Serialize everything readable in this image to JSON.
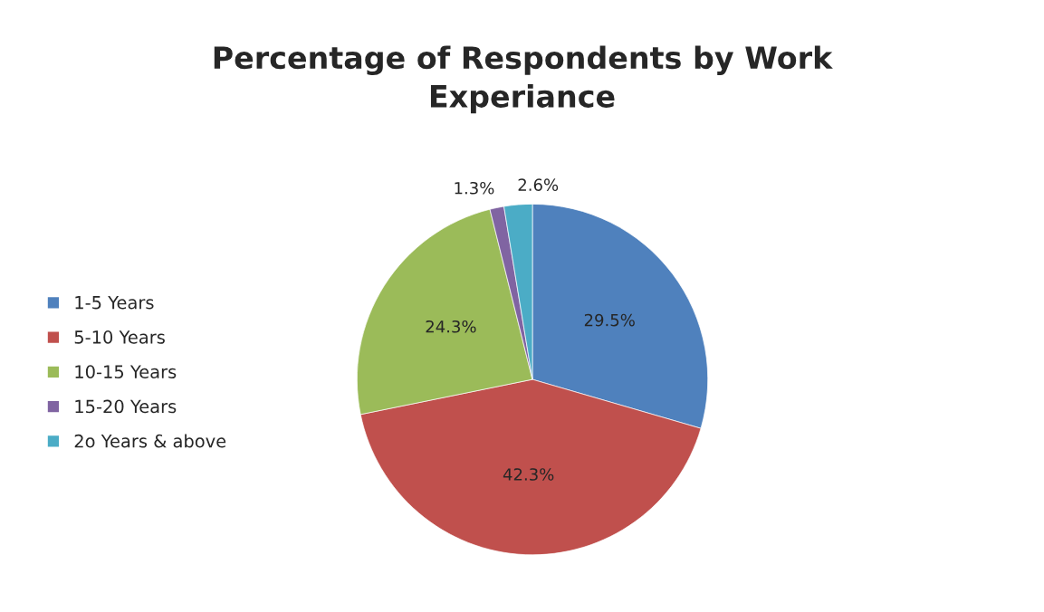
{
  "chart_data": {
    "type": "pie",
    "title": "Percentage of Respondents by Work Experiance",
    "categories": [
      "1-5 Years",
      "5-10 Years",
      "10-15 Years",
      "15-20 Years",
      "2o Years & above"
    ],
    "values": [
      29.5,
      42.3,
      24.3,
      1.3,
      2.6
    ],
    "value_labels": [
      "29.5%",
      "42.3%",
      "24.3%",
      "1.3%",
      "2.6%"
    ],
    "colors": [
      "#4f81bd",
      "#c0504d",
      "#9bbb59",
      "#8064a2",
      "#4bacc6"
    ],
    "legend": "left"
  }
}
